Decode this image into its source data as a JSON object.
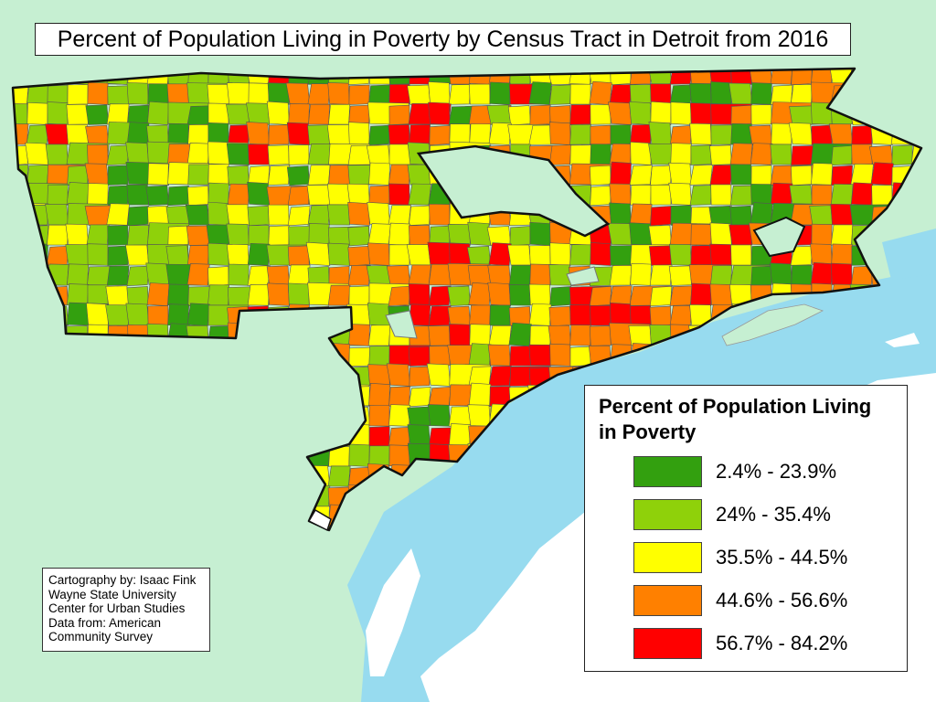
{
  "map": {
    "title": "Percent of Population Living in Poverty by Census Tract in Detroit from 2016",
    "colors": {
      "land": "#c6efd2",
      "water": "#97dbef",
      "island": "#ffffff",
      "tract_border": "#555555",
      "city_border": "#111111"
    }
  },
  "legend": {
    "title_line1": "Percent of Population Living",
    "title_line2": "in Poverty",
    "classes": [
      {
        "label": "2.4% - 23.9%",
        "color": "#33a00f"
      },
      {
        "label": "24% - 35.4%",
        "color": "#8fd10a"
      },
      {
        "label": "35.5% - 44.5%",
        "color": "#ffff00"
      },
      {
        "label": "44.6% - 56.6%",
        "color": "#ff8000"
      },
      {
        "label": "56.7% - 84.2%",
        "color": "#ff0000"
      }
    ]
  },
  "credits": {
    "lines": [
      "Cartography by: Isaac Fink",
      "Wayne State University",
      "Center for Urban Studies",
      "Data from: American",
      "Community Survey"
    ]
  }
}
